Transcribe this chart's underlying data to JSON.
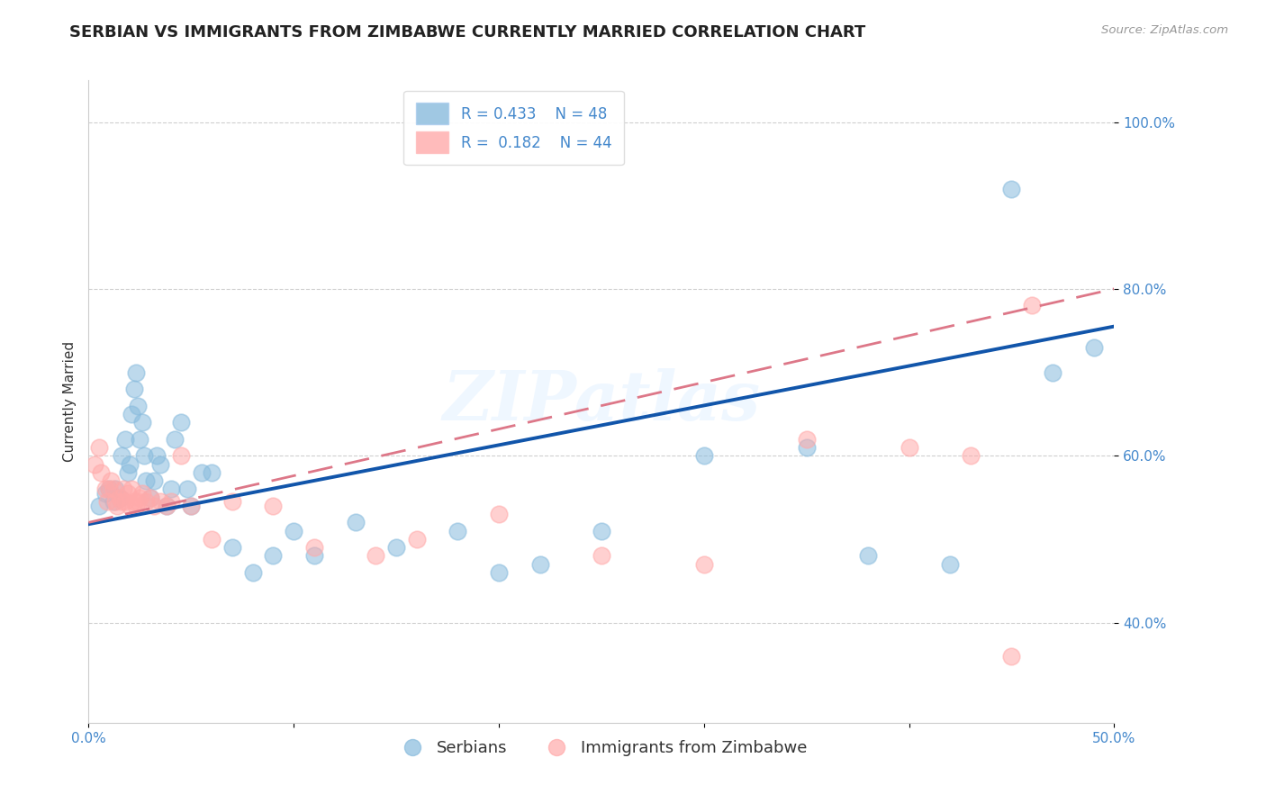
{
  "title": "SERBIAN VS IMMIGRANTS FROM ZIMBABWE CURRENTLY MARRIED CORRELATION CHART",
  "source_text": "Source: ZipAtlas.com",
  "ylabel": "Currently Married",
  "x_min": 0.0,
  "x_max": 0.5,
  "y_min": 0.28,
  "y_max": 1.05,
  "x_ticks": [
    0.0,
    0.1,
    0.2,
    0.3,
    0.4,
    0.5
  ],
  "x_tick_labels": [
    "0.0%",
    "",
    "",
    "",
    "",
    "50.0%"
  ],
  "y_ticks": [
    0.4,
    0.6,
    0.8,
    1.0
  ],
  "y_tick_labels": [
    "40.0%",
    "60.0%",
    "80.0%",
    "100.0%"
  ],
  "blue_color": "#88BBDD",
  "pink_color": "#FFAAAA",
  "blue_line_color": "#1155AA",
  "pink_line_color": "#DD7788",
  "legend_R1": "0.433",
  "legend_N1": "48",
  "legend_R2": "0.182",
  "legend_N2": "44",
  "legend_label1": "Serbians",
  "legend_label2": "Immigrants from Zimbabwe",
  "watermark": "ZIPatlas",
  "blue_line_x0": 0.0,
  "blue_line_y0": 0.518,
  "blue_line_x1": 0.5,
  "blue_line_y1": 0.755,
  "pink_line_x0": 0.0,
  "pink_line_y0": 0.52,
  "pink_line_x1": 0.5,
  "pink_line_y1": 0.8,
  "blue_x": [
    0.005,
    0.008,
    0.01,
    0.012,
    0.013,
    0.015,
    0.016,
    0.018,
    0.019,
    0.02,
    0.021,
    0.022,
    0.023,
    0.024,
    0.025,
    0.026,
    0.027,
    0.028,
    0.03,
    0.032,
    0.033,
    0.035,
    0.038,
    0.04,
    0.042,
    0.045,
    0.048,
    0.05,
    0.055,
    0.06,
    0.07,
    0.08,
    0.09,
    0.1,
    0.11,
    0.13,
    0.15,
    0.18,
    0.2,
    0.22,
    0.25,
    0.3,
    0.35,
    0.38,
    0.42,
    0.45,
    0.47,
    0.49
  ],
  "blue_y": [
    0.54,
    0.555,
    0.56,
    0.545,
    0.56,
    0.55,
    0.6,
    0.62,
    0.58,
    0.59,
    0.65,
    0.68,
    0.7,
    0.66,
    0.62,
    0.64,
    0.6,
    0.57,
    0.55,
    0.57,
    0.6,
    0.59,
    0.54,
    0.56,
    0.62,
    0.64,
    0.56,
    0.54,
    0.58,
    0.58,
    0.49,
    0.46,
    0.48,
    0.51,
    0.48,
    0.52,
    0.49,
    0.51,
    0.46,
    0.47,
    0.51,
    0.6,
    0.61,
    0.48,
    0.47,
    0.92,
    0.7,
    0.73
  ],
  "pink_x": [
    0.003,
    0.005,
    0.006,
    0.008,
    0.009,
    0.01,
    0.011,
    0.012,
    0.013,
    0.014,
    0.015,
    0.016,
    0.017,
    0.018,
    0.019,
    0.02,
    0.021,
    0.022,
    0.023,
    0.024,
    0.025,
    0.026,
    0.028,
    0.03,
    0.032,
    0.035,
    0.038,
    0.04,
    0.045,
    0.05,
    0.06,
    0.07,
    0.09,
    0.11,
    0.14,
    0.16,
    0.2,
    0.25,
    0.3,
    0.35,
    0.4,
    0.43,
    0.45,
    0.46
  ],
  "pink_y": [
    0.59,
    0.61,
    0.58,
    0.56,
    0.545,
    0.56,
    0.57,
    0.56,
    0.545,
    0.54,
    0.55,
    0.545,
    0.56,
    0.545,
    0.555,
    0.54,
    0.56,
    0.545,
    0.54,
    0.545,
    0.55,
    0.555,
    0.545,
    0.55,
    0.54,
    0.545,
    0.54,
    0.545,
    0.6,
    0.54,
    0.5,
    0.545,
    0.54,
    0.49,
    0.48,
    0.5,
    0.53,
    0.48,
    0.47,
    0.62,
    0.61,
    0.6,
    0.36,
    0.78
  ],
  "title_fontsize": 13,
  "axis_label_fontsize": 11,
  "tick_fontsize": 11,
  "legend_fontsize": 12
}
